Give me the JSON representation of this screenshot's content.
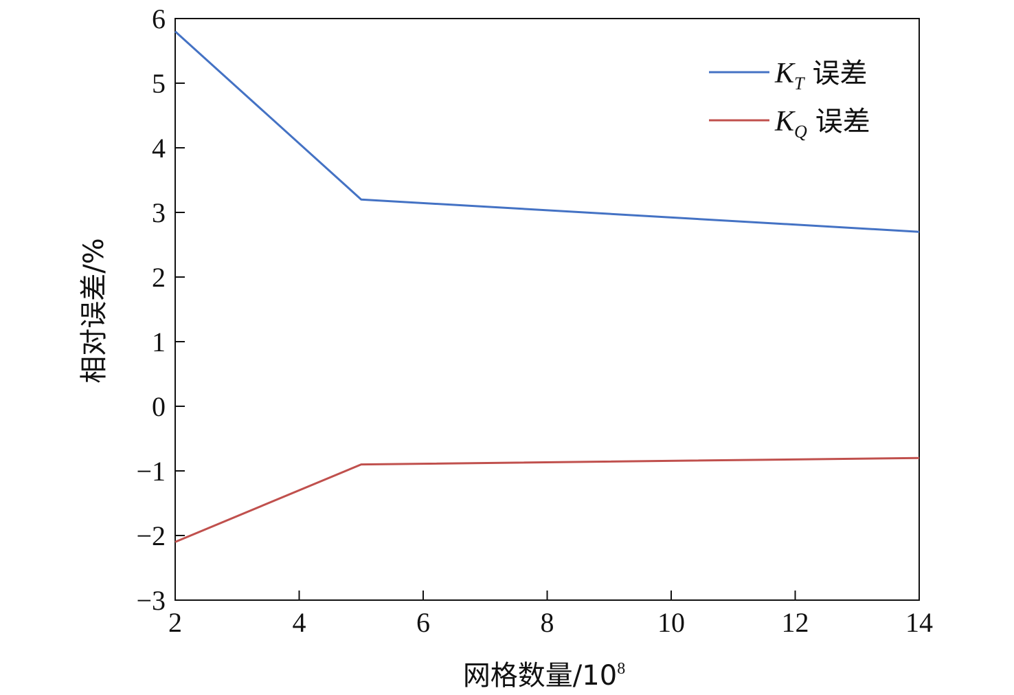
{
  "chart_data": {
    "type": "line",
    "title": "",
    "xlabel": "网格数量/10",
    "xlabel_sup": "8",
    "ylabel": "相对误差/%",
    "xlim": [
      2,
      14
    ],
    "ylim": [
      -3,
      6
    ],
    "xticks": [
      "2",
      "4",
      "6",
      "8",
      "10",
      "12",
      "14"
    ],
    "yticks": [
      "−3",
      "−2",
      "−1",
      "0",
      "1",
      "2",
      "3",
      "4",
      "5",
      "6"
    ],
    "grid": false,
    "legend_position": "top-right",
    "series": [
      {
        "name": "K_T 误差",
        "legend_main": "K",
        "legend_sub": "T",
        "legend_suffix": "误差",
        "color": "#4472c4",
        "x": [
          2,
          5,
          14
        ],
        "y": [
          5.8,
          3.2,
          2.7
        ]
      },
      {
        "name": "K_Q 误差",
        "legend_main": "K",
        "legend_sub": "Q",
        "legend_suffix": "误差",
        "color": "#c0504d",
        "x": [
          2,
          5,
          14
        ],
        "y": [
          -2.1,
          -0.9,
          -0.8
        ]
      }
    ]
  }
}
